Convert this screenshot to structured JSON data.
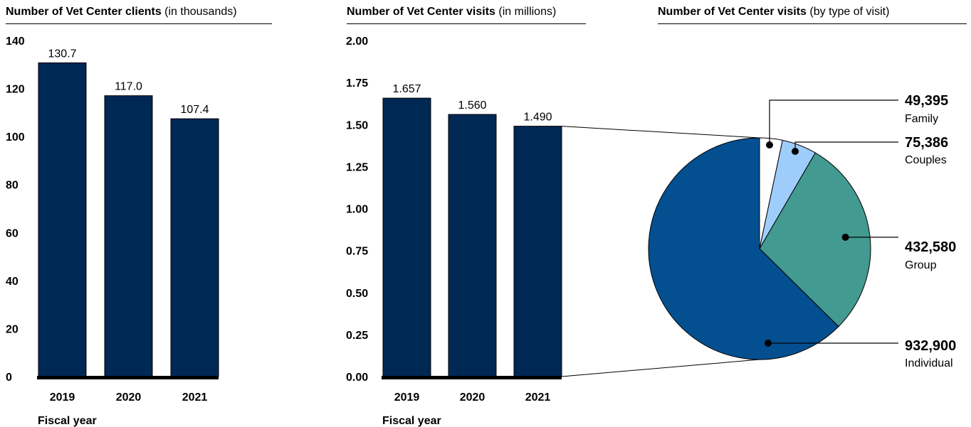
{
  "titles": {
    "clients": {
      "main": "Number of Vet Center clients",
      "unit": "(in thousands)"
    },
    "visits": {
      "main": "Number of Vet Center visits",
      "unit": "(in millions)"
    },
    "pie": {
      "main": "Number of Vet Center visits",
      "unit": "(by type of visit)"
    }
  },
  "chart_data": [
    {
      "type": "bar",
      "title": "Number of Vet Center clients (in thousands)",
      "xlabel": "Fiscal year",
      "ylabel": "",
      "categories": [
        "2019",
        "2020",
        "2021"
      ],
      "values": [
        130.7,
        117.0,
        107.4
      ],
      "value_labels": [
        "130.7",
        "117.0",
        "107.4"
      ],
      "ylim": [
        0,
        140
      ],
      "yticks": [
        "0",
        "20",
        "40",
        "60",
        "80",
        "100",
        "120",
        "140"
      ],
      "color": "#002855",
      "grid": false
    },
    {
      "type": "bar",
      "title": "Number of Vet Center visits (in millions)",
      "xlabel": "Fiscal year",
      "ylabel": "",
      "categories": [
        "2019",
        "2020",
        "2021"
      ],
      "values": [
        1.657,
        1.56,
        1.49
      ],
      "value_labels": [
        "1.657",
        "1.560",
        "1.490"
      ],
      "ylim": [
        0,
        2
      ],
      "yticks": [
        "0.00",
        "0.25",
        "0.50",
        "0.75",
        "1.00",
        "1.25",
        "1.50",
        "1.75",
        "2.00"
      ],
      "color": "#002855",
      "grid": false
    },
    {
      "type": "pie",
      "title": "Number of Vet Center visits (by type of visit)",
      "slices": [
        {
          "name": "Family",
          "value": 49395,
          "label": "49,395",
          "color": "#ffffff"
        },
        {
          "name": "Couples",
          "value": 75386,
          "label": "75,386",
          "color": "#9fcdfb"
        },
        {
          "name": "Group",
          "value": 432580,
          "label": "432,580",
          "color": "#429a91"
        },
        {
          "name": "Individual",
          "value": 932900,
          "label": "932,900",
          "color": "#044f90"
        }
      ]
    }
  ]
}
